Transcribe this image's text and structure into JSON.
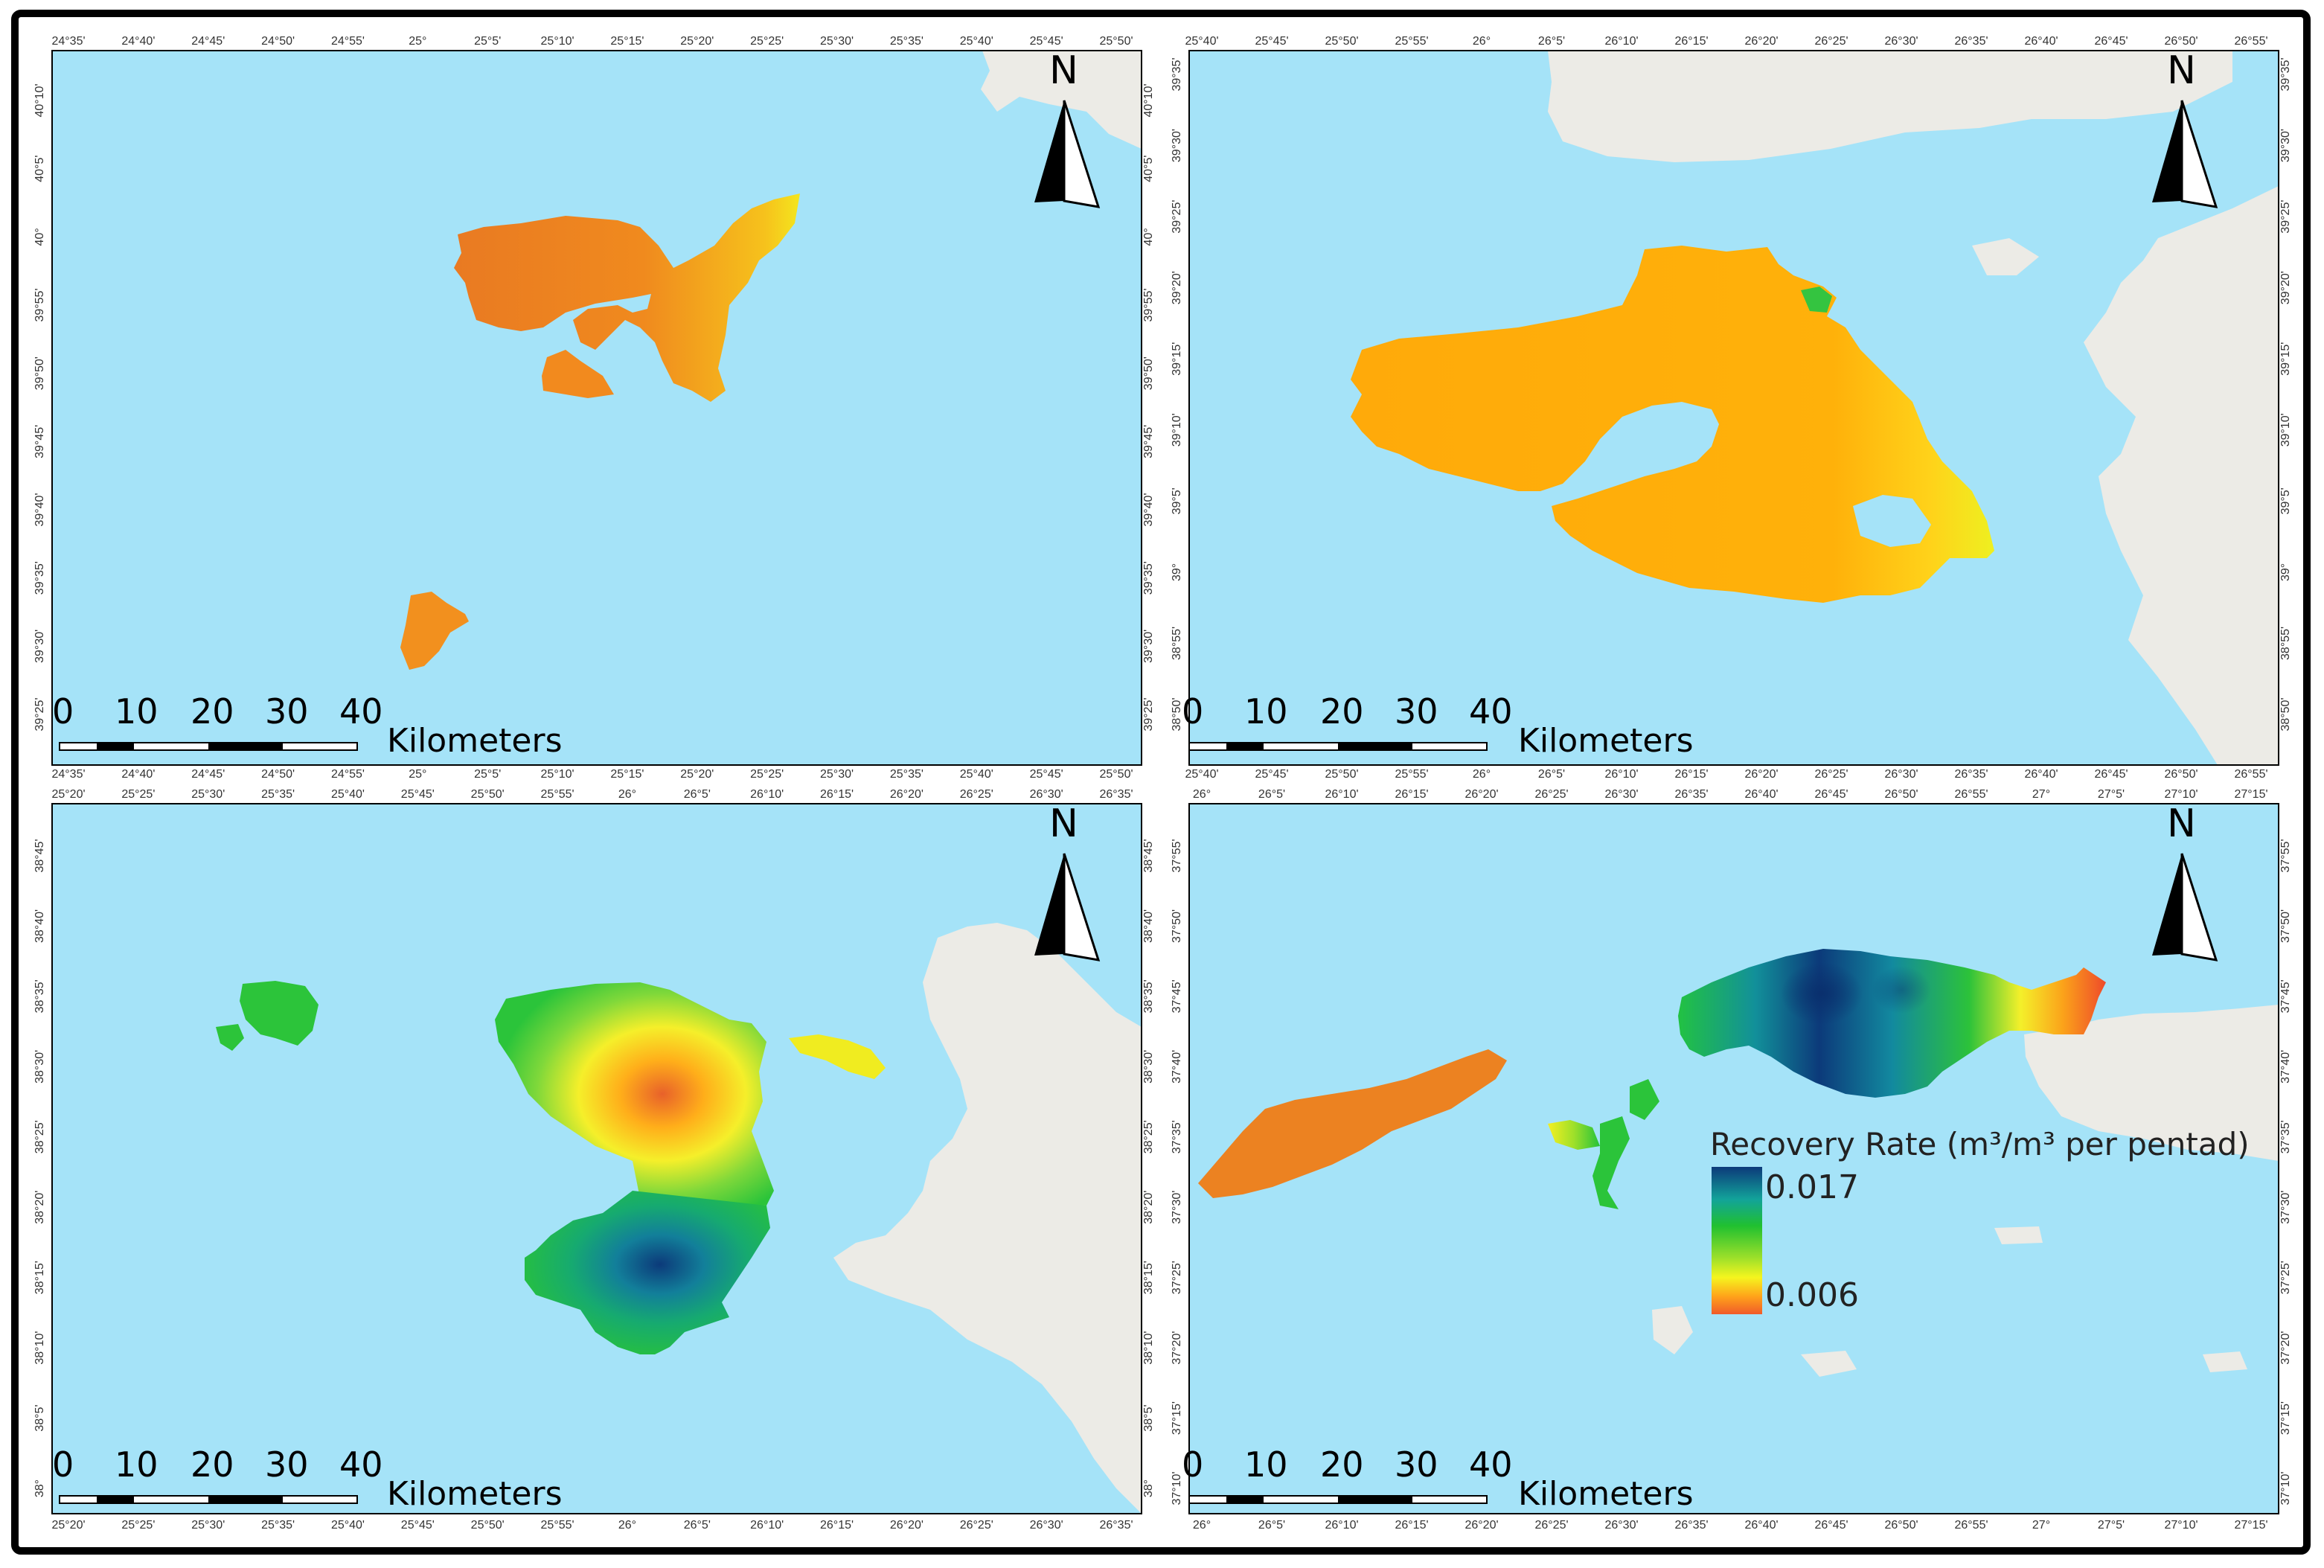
{
  "panels": [
    {
      "id": "top-left",
      "top_ticks": [
        "24°35'",
        "24°40'",
        "24°45'",
        "24°50'",
        "24°55'",
        "25°",
        "25°5'",
        "25°10'",
        "25°15'",
        "25°20'",
        "25°25'",
        "25°30'",
        "25°35'",
        "25°40'",
        "25°45'",
        "25°50'"
      ],
      "left_ticks": [
        "40°10'",
        "40°5'",
        "40°",
        "39°55'",
        "39°50'",
        "39°45'",
        "39°40'",
        "39°35'",
        "39°30'",
        "39°25'"
      ],
      "right_ticks": [
        "40°10'",
        "40°5'",
        "40°",
        "39°55'",
        "39°50'",
        "39°45'",
        "39°40'",
        "39°35'",
        "39°30'",
        "39°25'"
      ]
    },
    {
      "id": "top-right",
      "top_ticks": [
        "25°40'",
        "25°45'",
        "25°50'",
        "25°55'",
        "26°",
        "26°5'",
        "26°10'",
        "26°15'",
        "26°20'",
        "26°25'",
        "26°30'",
        "26°35'",
        "26°40'",
        "26°45'",
        "26°50'",
        "26°55'"
      ],
      "left_ticks": [
        "39°35'",
        "39°30'",
        "39°25'",
        "39°20'",
        "39°15'",
        "39°10'",
        "39°5'",
        "39°",
        "38°55'",
        "38°50'"
      ],
      "right_ticks": [
        "39°35'",
        "39°30'",
        "39°25'",
        "39°20'",
        "39°15'",
        "39°10'",
        "39°5'",
        "39°",
        "38°55'",
        "38°50'"
      ]
    },
    {
      "id": "bottom-left",
      "top_ticks": [
        "25°20'",
        "25°25'",
        "25°30'",
        "25°35'",
        "25°40'",
        "25°45'",
        "25°50'",
        "25°55'",
        "26°",
        "26°5'",
        "26°10'",
        "26°15'",
        "26°20'",
        "26°25'",
        "26°30'",
        "26°35'"
      ],
      "left_ticks": [
        "38°45'",
        "38°40'",
        "38°35'",
        "38°30'",
        "38°25'",
        "38°20'",
        "38°15'",
        "38°10'",
        "38°5'",
        "38°"
      ],
      "right_ticks": [
        "38°45'",
        "38°40'",
        "38°35'",
        "38°30'",
        "38°25'",
        "38°20'",
        "38°15'",
        "38°10'",
        "38°5'",
        "38°"
      ]
    },
    {
      "id": "bottom-right",
      "top_ticks": [
        "26°",
        "26°5'",
        "26°10'",
        "26°15'",
        "26°20'",
        "26°25'",
        "26°30'",
        "26°35'",
        "26°40'",
        "26°45'",
        "26°50'",
        "26°55'",
        "27°",
        "27°5'",
        "27°10'",
        "27°15'"
      ],
      "left_ticks": [
        "37°55'",
        "37°50'",
        "37°45'",
        "37°40'",
        "37°35'",
        "37°30'",
        "37°25'",
        "37°20'",
        "37°15'",
        "37°10'"
      ],
      "right_ticks": [
        "37°55'",
        "37°50'",
        "37°45'",
        "37°40'",
        "37°35'",
        "37°30'",
        "37°25'",
        "37°20'",
        "37°15'",
        "37°10'"
      ]
    }
  ],
  "scale_bar": {
    "numbers": [
      "0",
      "10",
      "20",
      "30",
      "40"
    ],
    "unit": "Kilometers"
  },
  "north_arrow": {
    "label": "N"
  },
  "legend": {
    "title": "Recovery Rate (m³/m³ per pentad)",
    "max_label": "0.017",
    "min_label": "0.006"
  },
  "colors": {
    "sea": "#a5e3f8",
    "land": "#ecebe6",
    "high": "#0d3f7e",
    "mid": "#22c32e",
    "low": "#f0672a"
  }
}
